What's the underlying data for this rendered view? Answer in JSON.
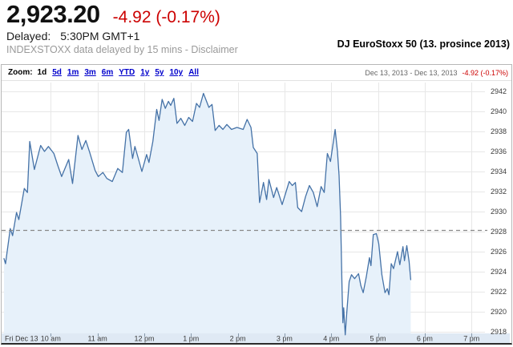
{
  "quote": {
    "price": "2,923.20",
    "change": "-4.92 (-0.17%)",
    "delayed_label": "Delayed:",
    "delayed_time": "5:30PM GMT+1",
    "source_note": "INDEXSTOXX data delayed by 15 mins - Disclaimer",
    "caption": "DJ EuroStoxx 50 (13. prosince 2013)"
  },
  "toolbar": {
    "zoom_label": "Zoom:",
    "ranges": [
      {
        "label": "1d",
        "selected": true
      },
      {
        "label": "5d",
        "selected": false
      },
      {
        "label": "1m",
        "selected": false
      },
      {
        "label": "3m",
        "selected": false
      },
      {
        "label": "6m",
        "selected": false
      },
      {
        "label": "YTD",
        "selected": false
      },
      {
        "label": "1y",
        "selected": false
      },
      {
        "label": "5y",
        "selected": false
      },
      {
        "label": "10y",
        "selected": false
      },
      {
        "label": "All",
        "selected": false
      }
    ],
    "date_range": "Dec 13, 2013  -  Dec 13, 2013",
    "range_change": "-4.92 (-0.17%)"
  },
  "chart_data": {
    "type": "area",
    "name": "DJ EuroStoxx 50",
    "last_price": 2923.2,
    "previous_close": 2928.12,
    "y_axis": {
      "min": 2918,
      "max": 2942,
      "step": 2,
      "tick_values": [
        2918,
        2920,
        2922,
        2924,
        2926,
        2928,
        2930,
        2932,
        2934,
        2936,
        2938,
        2940,
        2942
      ]
    },
    "x_axis": {
      "session_start_hour": 9,
      "ticks": [
        {
          "hour": 9,
          "label": "Fri Dec 13"
        },
        {
          "hour": 10,
          "label": "10 am"
        },
        {
          "hour": 11,
          "label": "11 am"
        },
        {
          "hour": 12,
          "label": "12 pm"
        },
        {
          "hour": 13,
          "label": "1 pm"
        },
        {
          "hour": 14,
          "label": "2 pm"
        },
        {
          "hour": 15,
          "label": "3 pm"
        },
        {
          "hour": 16,
          "label": "4 pm"
        },
        {
          "hour": 17,
          "label": "5 pm"
        },
        {
          "hour": 18,
          "label": "6 pm"
        },
        {
          "hour": 19,
          "label": "7 pm"
        }
      ]
    },
    "colors": {
      "line": "#4572a7",
      "fill": "#e7f1fa",
      "band": "#dfe9f4",
      "grid": "#e7e7e7",
      "prev_close_line": "#888888",
      "axis_text": "#3b3b3b",
      "tick_mark": "#8899aa"
    },
    "series": [
      {
        "name": "DJ EuroStoxx 50",
        "points_format": [
          "minutes_after_9am",
          "index_value"
        ],
        "points": [
          [
            0,
            2925.3
          ],
          [
            2,
            2924.8
          ],
          [
            8,
            2928.3
          ],
          [
            11,
            2927.6
          ],
          [
            16,
            2929.9
          ],
          [
            19,
            2929.2
          ],
          [
            26,
            2932.3
          ],
          [
            30,
            2931.9
          ],
          [
            33,
            2937.0
          ],
          [
            36,
            2935.6
          ],
          [
            39,
            2934.2
          ],
          [
            47,
            2936.6
          ],
          [
            52,
            2936.0
          ],
          [
            57,
            2936.5
          ],
          [
            64,
            2935.8
          ],
          [
            69,
            2934.6
          ],
          [
            74,
            2933.5
          ],
          [
            83,
            2935.2
          ],
          [
            88,
            2932.8
          ],
          [
            95,
            2937.6
          ],
          [
            100,
            2936.2
          ],
          [
            105,
            2937.1
          ],
          [
            110,
            2935.9
          ],
          [
            117,
            2934.1
          ],
          [
            121,
            2933.5
          ],
          [
            127,
            2933.9
          ],
          [
            132,
            2933.3
          ],
          [
            139,
            2933.0
          ],
          [
            146,
            2934.3
          ],
          [
            152,
            2933.9
          ],
          [
            157,
            2937.9
          ],
          [
            160,
            2938.2
          ],
          [
            165,
            2935.3
          ],
          [
            168,
            2936.5
          ],
          [
            172,
            2935.4
          ],
          [
            177,
            2934.0
          ],
          [
            183,
            2935.7
          ],
          [
            186,
            2934.9
          ],
          [
            191,
            2937.0
          ],
          [
            196,
            2940.2
          ],
          [
            199,
            2939.1
          ],
          [
            203,
            2941.2
          ],
          [
            207,
            2940.3
          ],
          [
            211,
            2941.0
          ],
          [
            214,
            2940.6
          ],
          [
            218,
            2941.3
          ],
          [
            222,
            2938.8
          ],
          [
            227,
            2939.3
          ],
          [
            232,
            2938.6
          ],
          [
            237,
            2939.4
          ],
          [
            242,
            2939.0
          ],
          [
            247,
            2940.8
          ],
          [
            251,
            2940.4
          ],
          [
            256,
            2941.8
          ],
          [
            260,
            2941.0
          ],
          [
            263,
            2940.4
          ],
          [
            267,
            2940.7
          ],
          [
            271,
            2938.1
          ],
          [
            276,
            2938.6
          ],
          [
            281,
            2938.2
          ],
          [
            286,
            2938.7
          ],
          [
            292,
            2938.2
          ],
          [
            299,
            2938.4
          ],
          [
            307,
            2938.2
          ],
          [
            312,
            2939.2
          ],
          [
            317,
            2938.4
          ],
          [
            320,
            2936.4
          ],
          [
            325,
            2935.8
          ],
          [
            328,
            2930.9
          ],
          [
            333,
            2932.9
          ],
          [
            337,
            2931.2
          ],
          [
            340,
            2933.2
          ],
          [
            346,
            2931.4
          ],
          [
            350,
            2932.4
          ],
          [
            357,
            2930.7
          ],
          [
            366,
            2933.0
          ],
          [
            370,
            2932.6
          ],
          [
            374,
            2932.9
          ],
          [
            377,
            2930.4
          ],
          [
            382,
            2930.0
          ],
          [
            387,
            2931.5
          ],
          [
            392,
            2932.6
          ],
          [
            397,
            2931.9
          ],
          [
            402,
            2930.5
          ],
          [
            407,
            2932.5
          ],
          [
            411,
            2931.9
          ],
          [
            415,
            2935.8
          ],
          [
            419,
            2935.0
          ],
          [
            425,
            2938.2
          ],
          [
            428,
            2936.0
          ],
          [
            430,
            2933.6
          ],
          [
            432,
            2929.5
          ],
          [
            434,
            2922.0
          ],
          [
            435,
            2918.9
          ],
          [
            436,
            2920.4
          ],
          [
            438,
            2917.7
          ],
          [
            440,
            2920.0
          ],
          [
            443,
            2923.0
          ],
          [
            446,
            2923.7
          ],
          [
            450,
            2923.3
          ],
          [
            455,
            2923.8
          ],
          [
            458,
            2922.6
          ],
          [
            461,
            2921.9
          ],
          [
            465,
            2923.5
          ],
          [
            469,
            2925.4
          ],
          [
            471,
            2924.6
          ],
          [
            474,
            2927.7
          ],
          [
            478,
            2927.8
          ],
          [
            481,
            2926.8
          ],
          [
            485,
            2923.7
          ],
          [
            489,
            2921.9
          ],
          [
            492,
            2922.3
          ],
          [
            494,
            2921.7
          ],
          [
            497,
            2924.8
          ],
          [
            500,
            2924.3
          ],
          [
            505,
            2926.0
          ],
          [
            508,
            2924.7
          ],
          [
            512,
            2926.5
          ],
          [
            514,
            2925.1
          ],
          [
            517,
            2926.6
          ],
          [
            520,
            2925.0
          ],
          [
            522,
            2923.2
          ]
        ]
      }
    ]
  }
}
